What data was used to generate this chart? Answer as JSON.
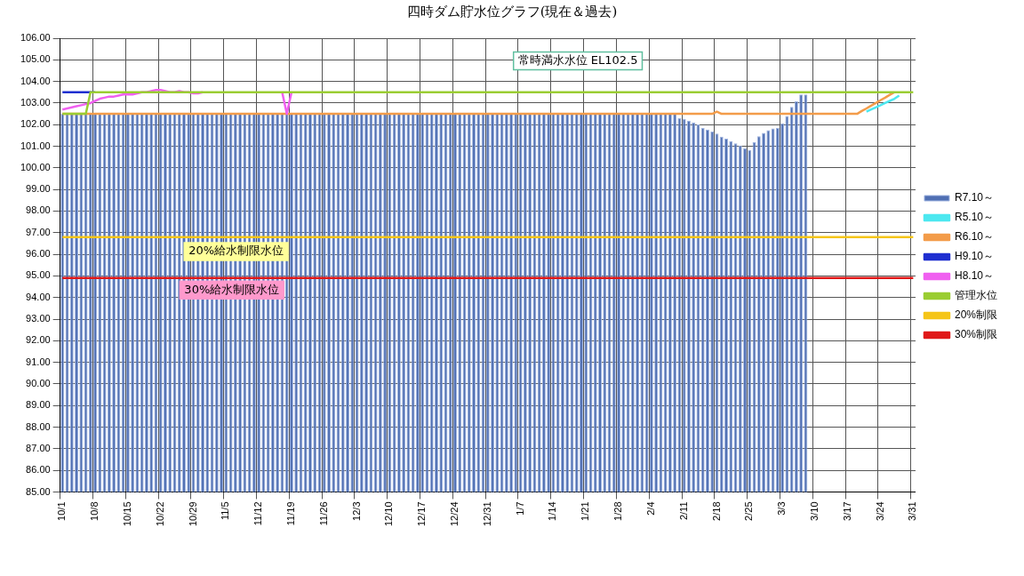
{
  "chart_data": {
    "type": "bar",
    "title": "四時ダム貯水位グラフ(現在＆過去)",
    "categories": [
      "10/1",
      null,
      null,
      null,
      null,
      null,
      null,
      "10/8",
      null,
      null,
      null,
      null,
      null,
      null,
      "10/15",
      null,
      null,
      null,
      null,
      null,
      null,
      "10/22",
      null,
      null,
      null,
      null,
      null,
      null,
      "10/29",
      null,
      null,
      null,
      null,
      null,
      null,
      "11/5",
      null,
      null,
      null,
      null,
      null,
      null,
      "11/12",
      null,
      null,
      null,
      null,
      null,
      null,
      "11/19",
      null,
      null,
      null,
      null,
      null,
      null,
      "11/26",
      null,
      null,
      null,
      null,
      null,
      null,
      "12/3",
      null,
      null,
      null,
      null,
      null,
      null,
      "12/10",
      null,
      null,
      null,
      null,
      null,
      null,
      "12/17",
      null,
      null,
      null,
      null,
      null,
      null,
      "12/24",
      null,
      null,
      null,
      null,
      null,
      null,
      "12/31",
      null,
      null,
      null,
      null,
      null,
      null,
      "1/7",
      null,
      null,
      null,
      null,
      null,
      null,
      "1/14",
      null,
      null,
      null,
      null,
      null,
      null,
      "1/21",
      null,
      null,
      null,
      null,
      null,
      null,
      "1/28",
      null,
      null,
      null,
      null,
      null,
      null,
      "2/4",
      null,
      null,
      null,
      null,
      null,
      null,
      "2/11",
      null,
      null,
      null,
      null,
      null,
      null,
      "2/18",
      null,
      null,
      null,
      null,
      null,
      null,
      "2/25",
      null,
      null,
      null,
      null,
      null,
      null,
      "3/3",
      null,
      null,
      null,
      null,
      null,
      null,
      "3/10",
      null,
      null,
      null,
      null,
      null,
      null,
      "3/17",
      null,
      null,
      null,
      null,
      null,
      null,
      "3/24",
      null,
      null,
      null,
      null,
      null,
      null,
      "3/31"
    ],
    "ylim": [
      85,
      106
    ],
    "yticks": [
      {
        "value": 85,
        "label": "85.00"
      },
      {
        "value": 86,
        "label": "86.00"
      },
      {
        "value": 87,
        "label": "87.00"
      },
      {
        "value": 88,
        "label": "88.00"
      },
      {
        "value": 89,
        "label": "89.00"
      },
      {
        "value": 90,
        "label": "90.00"
      },
      {
        "value": 91,
        "label": "91.00"
      },
      {
        "value": 92,
        "label": "92.00"
      },
      {
        "value": 93,
        "label": "93.00"
      },
      {
        "value": 94,
        "label": "94.00"
      },
      {
        "value": 95,
        "label": "95.00"
      },
      {
        "value": 96,
        "label": "96.00"
      },
      {
        "value": 97,
        "label": "97.00"
      },
      {
        "value": 98,
        "label": "98.00"
      },
      {
        "value": 99,
        "label": "99.00"
      },
      {
        "value": 100,
        "label": "100.00"
      },
      {
        "value": 101,
        "label": "101.00"
      },
      {
        "value": 102,
        "label": "102.00"
      },
      {
        "value": 103,
        "label": "103.00"
      },
      {
        "value": 104,
        "label": "104.00"
      },
      {
        "value": 105,
        "label": "105.00"
      },
      {
        "value": 106,
        "label": "106.00"
      }
    ],
    "grid": true,
    "legend": "right",
    "marker": "none",
    "annotations": [
      "常時満水水位 EL102.5",
      "20%給水制限水位",
      "30%給水制限水位"
    ],
    "series": [
      {
        "name": "R7.10～",
        "type": "bar",
        "color": "#4f6fb3",
        "values": [
          102.5,
          102.5,
          102.5,
          102.5,
          102.5,
          102.5,
          102.5,
          102.5,
          102.5,
          102.5,
          102.5,
          102.5,
          102.5,
          102.5,
          102.5,
          102.5,
          102.5,
          102.5,
          102.5,
          102.5,
          102.5,
          102.5,
          102.5,
          102.5,
          102.5,
          102.5,
          102.5,
          102.5,
          102.5,
          102.5,
          102.5,
          102.5,
          102.5,
          102.5,
          102.5,
          102.5,
          102.5,
          102.5,
          102.5,
          102.5,
          102.5,
          102.5,
          102.5,
          102.5,
          102.5,
          102.5,
          102.5,
          102.5,
          102.5,
          102.5,
          102.5,
          102.5,
          102.5,
          102.5,
          102.5,
          102.5,
          102.5,
          102.5,
          102.5,
          102.5,
          102.5,
          102.5,
          102.5,
          102.5,
          102.5,
          102.5,
          102.5,
          102.5,
          102.5,
          102.5,
          102.5,
          102.5,
          102.5,
          102.5,
          102.5,
          102.5,
          102.5,
          102.5,
          102.5,
          102.5,
          102.5,
          102.5,
          102.5,
          102.5,
          102.5,
          102.5,
          102.5,
          102.5,
          102.5,
          102.5,
          102.5,
          102.5,
          102.5,
          102.5,
          102.5,
          102.5,
          102.5,
          102.5,
          102.5,
          102.5,
          102.5,
          102.5,
          102.5,
          102.5,
          102.5,
          102.5,
          102.5,
          102.5,
          102.5,
          102.5,
          102.5,
          102.5,
          102.5,
          102.5,
          102.5,
          102.5,
          102.5,
          102.5,
          102.5,
          102.5,
          102.5,
          102.5,
          102.5,
          102.5,
          102.5,
          102.5,
          102.5,
          102.5,
          102.5,
          102.5,
          102.5,
          102.5,
          102.3,
          102.26,
          102.18,
          102.1,
          102.01,
          101.85,
          101.77,
          101.68,
          101.59,
          101.44,
          101.35,
          101.24,
          101.14,
          101.03,
          100.91,
          100.83,
          101.19,
          101.46,
          101.62,
          101.74,
          101.82,
          101.84,
          102.06,
          102.4,
          102.82,
          103.08,
          103.4,
          103.4,
          null,
          null,
          null,
          null,
          null,
          null,
          null,
          null,
          null,
          null,
          null,
          null,
          null,
          null,
          null,
          null,
          null,
          null,
          null,
          null,
          null,
          null,
          null
        ]
      },
      {
        "name": "R5.10～",
        "type": "line",
        "color": "#4de8f0",
        "values": [
          null,
          null,
          null,
          null,
          null,
          null,
          null,
          null,
          null,
          null,
          null,
          null,
          null,
          null,
          null,
          null,
          null,
          null,
          null,
          null,
          null,
          null,
          null,
          null,
          null,
          null,
          null,
          null,
          null,
          null,
          null,
          null,
          null,
          null,
          null,
          null,
          null,
          null,
          null,
          null,
          null,
          null,
          null,
          null,
          null,
          null,
          null,
          null,
          null,
          null,
          null,
          null,
          null,
          null,
          null,
          null,
          null,
          null,
          null,
          null,
          null,
          null,
          null,
          null,
          null,
          null,
          null,
          null,
          null,
          null,
          null,
          null,
          null,
          null,
          null,
          null,
          null,
          null,
          null,
          null,
          null,
          null,
          null,
          null,
          null,
          null,
          null,
          null,
          null,
          null,
          null,
          null,
          null,
          null,
          null,
          null,
          null,
          null,
          null,
          null,
          null,
          null,
          null,
          null,
          null,
          null,
          null,
          null,
          null,
          null,
          null,
          null,
          null,
          null,
          null,
          null,
          null,
          null,
          null,
          null,
          null,
          null,
          null,
          null,
          null,
          null,
          null,
          null,
          null,
          null,
          null,
          null,
          null,
          null,
          null,
          null,
          null,
          null,
          null,
          null,
          null,
          null,
          null,
          null,
          null,
          null,
          null,
          null,
          null,
          null,
          null,
          null,
          null,
          null,
          null,
          null,
          null,
          null,
          null,
          null,
          null,
          null,
          null,
          null,
          null,
          null,
          null,
          null,
          null,
          null,
          null,
          null,
          102.6,
          102.7,
          102.8,
          102.9,
          103.0,
          103.1,
          103.2,
          103.35,
          null,
          null,
          null
        ]
      },
      {
        "name": "R6.10～",
        "type": "line",
        "color": "#f39c4a",
        "values": [
          102.5,
          102.5,
          102.5,
          102.5,
          102.5,
          102.5,
          102.5,
          102.5,
          102.5,
          102.5,
          102.5,
          102.5,
          102.5,
          102.5,
          102.5,
          102.5,
          102.5,
          102.5,
          102.5,
          102.5,
          102.5,
          102.5,
          102.5,
          102.5,
          102.5,
          102.5,
          102.5,
          102.5,
          102.5,
          102.5,
          102.5,
          102.5,
          102.5,
          102.5,
          102.5,
          102.5,
          102.5,
          102.5,
          102.5,
          102.5,
          102.5,
          102.5,
          102.5,
          102.5,
          102.5,
          102.5,
          102.5,
          102.5,
          102.5,
          102.5,
          102.5,
          102.5,
          102.5,
          102.5,
          102.5,
          102.5,
          102.5,
          102.5,
          102.5,
          102.5,
          102.5,
          102.5,
          102.5,
          102.5,
          102.5,
          102.5,
          102.5,
          102.5,
          102.5,
          102.5,
          102.5,
          102.5,
          102.5,
          102.5,
          102.5,
          102.5,
          102.5,
          102.5,
          102.5,
          102.5,
          102.5,
          102.5,
          102.5,
          102.5,
          102.5,
          102.5,
          102.5,
          102.5,
          102.5,
          102.5,
          102.5,
          102.5,
          102.5,
          102.5,
          102.5,
          102.5,
          102.5,
          102.5,
          102.5,
          102.5,
          102.5,
          102.5,
          102.5,
          102.5,
          102.5,
          102.5,
          102.5,
          102.5,
          102.5,
          102.5,
          102.5,
          102.5,
          102.5,
          102.5,
          102.5,
          102.5,
          102.5,
          102.5,
          102.5,
          102.5,
          102.5,
          102.5,
          102.5,
          102.5,
          102.5,
          102.5,
          102.5,
          102.5,
          102.5,
          102.5,
          102.5,
          102.5,
          102.5,
          102.5,
          102.5,
          102.5,
          102.5,
          102.5,
          102.5,
          102.5,
          102.6,
          102.5,
          102.5,
          102.5,
          102.5,
          102.5,
          102.5,
          102.5,
          102.5,
          102.5,
          102.5,
          102.5,
          102.5,
          102.5,
          102.5,
          102.5,
          102.5,
          102.5,
          102.5,
          102.5,
          102.5,
          102.5,
          102.5,
          102.5,
          102.5,
          102.5,
          102.5,
          102.5,
          102.5,
          102.5,
          102.5,
          102.63,
          102.75,
          102.88,
          103.0,
          103.13,
          103.25,
          103.38,
          103.5,
          null,
          null,
          null,
          null
        ]
      },
      {
        "name": "H9.10～",
        "type": "line",
        "color": "#1f2fd0",
        "values": [
          103.5,
          103.5,
          103.5,
          103.5,
          103.5,
          103.5,
          103.5,
          103.5,
          null,
          null,
          null,
          null,
          null,
          null,
          null,
          null,
          null,
          null,
          null,
          null,
          null,
          null,
          null,
          null,
          null,
          null,
          null,
          null,
          null,
          null,
          null,
          null,
          null,
          null,
          null,
          null,
          null,
          null,
          null,
          null,
          null,
          null,
          null,
          null,
          null,
          null,
          null,
          null,
          null,
          null,
          null,
          null,
          null,
          null,
          null,
          null,
          null,
          null,
          null,
          null,
          null,
          null,
          null,
          null,
          null,
          null,
          null,
          null,
          null,
          null,
          null,
          null,
          null,
          null,
          null,
          null,
          null,
          null,
          null,
          null,
          null,
          null,
          null,
          null,
          null,
          null,
          null,
          null,
          null,
          null,
          null,
          null,
          null,
          null,
          null,
          null,
          null,
          null,
          null,
          null,
          null,
          null,
          null,
          null,
          null,
          null,
          null,
          null,
          null,
          null,
          null,
          null,
          null,
          null,
          null,
          null,
          null,
          null,
          null,
          null,
          null,
          null,
          null,
          null,
          null,
          null,
          null,
          null,
          null,
          null,
          null,
          null,
          null,
          null,
          null,
          null,
          null,
          null,
          null,
          null,
          null,
          null,
          null,
          null,
          null,
          null,
          null,
          null,
          null,
          null,
          null,
          null,
          null,
          null,
          null,
          null,
          null,
          null,
          null,
          null,
          null,
          null,
          null,
          null,
          null,
          null,
          null,
          null,
          null,
          null,
          null,
          null,
          null,
          null,
          null,
          null,
          null,
          null,
          null,
          null,
          null,
          null,
          null
        ]
      },
      {
        "name": "H8.10～",
        "type": "line",
        "color": "#f060f0",
        "values": [
          102.7,
          102.75,
          102.8,
          102.85,
          102.9,
          102.95,
          103.0,
          103.1,
          103.2,
          103.25,
          103.3,
          103.3,
          103.35,
          103.4,
          103.4,
          103.4,
          103.45,
          103.5,
          103.5,
          103.55,
          103.6,
          103.6,
          103.55,
          103.5,
          103.5,
          103.55,
          103.5,
          103.5,
          103.45,
          103.45,
          103.5,
          null,
          null,
          null,
          null,
          null,
          null,
          null,
          null,
          null,
          null,
          null,
          null,
          null,
          null,
          null,
          null,
          103.5,
          102.5,
          103.5,
          null,
          null,
          null,
          null,
          null,
          null,
          null,
          null,
          null,
          null,
          null,
          null,
          null,
          null,
          null,
          null,
          null,
          null,
          null,
          null,
          null,
          null,
          null,
          null,
          null,
          null,
          null,
          null,
          null,
          null,
          null,
          null,
          null,
          null,
          null,
          null,
          null,
          null,
          null,
          null,
          null,
          null,
          null,
          null,
          null,
          null,
          null,
          null,
          null,
          null,
          null,
          null,
          null,
          null,
          null,
          null,
          null,
          null,
          null,
          null,
          null,
          null,
          null,
          null,
          null,
          null,
          null,
          null,
          null,
          null,
          null,
          null,
          null,
          null,
          null,
          null,
          null,
          null,
          null,
          null,
          null,
          null,
          null,
          null,
          null,
          null,
          null,
          null,
          null,
          null,
          null,
          null,
          null,
          null,
          null,
          null,
          null,
          null,
          null,
          null,
          null,
          null,
          null,
          null,
          null,
          null,
          null,
          null,
          null,
          null,
          null,
          null,
          null,
          null,
          null,
          null,
          null,
          null,
          null,
          null,
          null,
          null,
          null,
          null,
          null,
          null,
          null,
          null,
          null,
          null,
          null,
          null,
          null
        ]
      },
      {
        "name": "管理水位",
        "type": "line",
        "color": "#9acd32",
        "values": [
          102.5,
          102.5,
          102.5,
          102.5,
          102.5,
          102.5,
          103.5,
          103.5,
          103.5,
          103.5,
          103.5,
          103.5,
          103.5,
          103.5,
          103.5,
          103.5,
          103.5,
          103.5,
          103.5,
          103.5,
          103.5,
          103.5,
          103.5,
          103.5,
          103.5,
          103.5,
          103.5,
          103.5,
          103.5,
          103.5,
          103.5,
          103.5,
          103.5,
          103.5,
          103.5,
          103.5,
          103.5,
          103.5,
          103.5,
          103.5,
          103.5,
          103.5,
          103.5,
          103.5,
          103.5,
          103.5,
          103.5,
          103.5,
          103.5,
          103.5,
          103.5,
          103.5,
          103.5,
          103.5,
          103.5,
          103.5,
          103.5,
          103.5,
          103.5,
          103.5,
          103.5,
          103.5,
          103.5,
          103.5,
          103.5,
          103.5,
          103.5,
          103.5,
          103.5,
          103.5,
          103.5,
          103.5,
          103.5,
          103.5,
          103.5,
          103.5,
          103.5,
          103.5,
          103.5,
          103.5,
          103.5,
          103.5,
          103.5,
          103.5,
          103.5,
          103.5,
          103.5,
          103.5,
          103.5,
          103.5,
          103.5,
          103.5,
          103.5,
          103.5,
          103.5,
          103.5,
          103.5,
          103.5,
          103.5,
          103.5,
          103.5,
          103.5,
          103.5,
          103.5,
          103.5,
          103.5,
          103.5,
          103.5,
          103.5,
          103.5,
          103.5,
          103.5,
          103.5,
          103.5,
          103.5,
          103.5,
          103.5,
          103.5,
          103.5,
          103.5,
          103.5,
          103.5,
          103.5,
          103.5,
          103.5,
          103.5,
          103.5,
          103.5,
          103.5,
          103.5,
          103.5,
          103.5,
          103.5,
          103.5,
          103.5,
          103.5,
          103.5,
          103.5,
          103.5,
          103.5,
          103.5,
          103.5,
          103.5,
          103.5,
          103.5,
          103.5,
          103.5,
          103.5,
          103.5,
          103.5,
          103.5,
          103.5,
          103.5,
          103.5,
          103.5,
          103.5,
          103.5,
          103.5,
          103.5,
          103.5,
          103.5,
          103.5,
          103.5,
          103.5,
          103.5,
          103.5,
          103.5,
          103.5,
          103.5,
          103.5,
          103.5,
          103.5,
          103.5,
          103.5,
          103.5,
          103.5,
          103.5,
          103.5,
          103.5,
          103.5,
          103.5,
          103.5,
          103.5
        ]
      },
      {
        "name": "20%制限",
        "type": "line",
        "color": "#f5c518",
        "values": [
          96.8,
          96.8,
          96.8,
          96.8,
          96.8,
          96.8,
          96.8,
          96.8,
          96.8,
          96.8,
          96.8,
          96.8,
          96.8,
          96.8,
          96.8,
          96.8,
          96.8,
          96.8,
          96.8,
          96.8,
          96.8,
          96.8,
          96.8,
          96.8,
          96.8,
          96.8,
          96.8,
          96.8,
          96.8,
          96.8,
          96.8,
          96.8,
          96.8,
          96.8,
          96.8,
          96.8,
          96.8,
          96.8,
          96.8,
          96.8,
          96.8,
          96.8,
          96.8,
          96.8,
          96.8,
          96.8,
          96.8,
          96.8,
          96.8,
          96.8,
          96.8,
          96.8,
          96.8,
          96.8,
          96.8,
          96.8,
          96.8,
          96.8,
          96.8,
          96.8,
          96.8,
          96.8,
          96.8,
          96.8,
          96.8,
          96.8,
          96.8,
          96.8,
          96.8,
          96.8,
          96.8,
          96.8,
          96.8,
          96.8,
          96.8,
          96.8,
          96.8,
          96.8,
          96.8,
          96.8,
          96.8,
          96.8,
          96.8,
          96.8,
          96.8,
          96.8,
          96.8,
          96.8,
          96.8,
          96.8,
          96.8,
          96.8,
          96.8,
          96.8,
          96.8,
          96.8,
          96.8,
          96.8,
          96.8,
          96.8,
          96.8,
          96.8,
          96.8,
          96.8,
          96.8,
          96.8,
          96.8,
          96.8,
          96.8,
          96.8,
          96.8,
          96.8,
          96.8,
          96.8,
          96.8,
          96.8,
          96.8,
          96.8,
          96.8,
          96.8,
          96.8,
          96.8,
          96.8,
          96.8,
          96.8,
          96.8,
          96.8,
          96.8,
          96.8,
          96.8,
          96.8,
          96.8,
          96.8,
          96.8,
          96.8,
          96.8,
          96.8,
          96.8,
          96.8,
          96.8,
          96.8,
          96.8,
          96.8,
          96.8,
          96.8,
          96.8,
          96.8,
          96.8,
          96.8,
          96.8,
          96.8,
          96.8,
          96.8,
          96.8,
          96.8,
          96.8,
          96.8,
          96.8,
          96.8,
          96.8,
          96.8,
          96.8,
          96.8,
          96.8,
          96.8,
          96.8,
          96.8,
          96.8,
          96.8,
          96.8,
          96.8,
          96.8,
          96.8,
          96.8,
          96.8,
          96.8,
          96.8,
          96.8,
          96.8,
          96.8,
          96.8,
          96.8,
          96.8
        ]
      },
      {
        "name": "30%制限",
        "type": "line",
        "color": "#e01818",
        "values": [
          94.9,
          94.9,
          94.9,
          94.9,
          94.9,
          94.9,
          94.9,
          94.9,
          94.9,
          94.9,
          94.9,
          94.9,
          94.9,
          94.9,
          94.9,
          94.9,
          94.9,
          94.9,
          94.9,
          94.9,
          94.9,
          94.9,
          94.9,
          94.9,
          94.9,
          94.9,
          94.9,
          94.9,
          94.9,
          94.9,
          94.9,
          94.9,
          94.9,
          94.9,
          94.9,
          94.9,
          94.9,
          94.9,
          94.9,
          94.9,
          94.9,
          94.9,
          94.9,
          94.9,
          94.9,
          94.9,
          94.9,
          94.9,
          94.9,
          94.9,
          94.9,
          94.9,
          94.9,
          94.9,
          94.9,
          94.9,
          94.9,
          94.9,
          94.9,
          94.9,
          94.9,
          94.9,
          94.9,
          94.9,
          94.9,
          94.9,
          94.9,
          94.9,
          94.9,
          94.9,
          94.9,
          94.9,
          94.9,
          94.9,
          94.9,
          94.9,
          94.9,
          94.9,
          94.9,
          94.9,
          94.9,
          94.9,
          94.9,
          94.9,
          94.9,
          94.9,
          94.9,
          94.9,
          94.9,
          94.9,
          94.9,
          94.9,
          94.9,
          94.9,
          94.9,
          94.9,
          94.9,
          94.9,
          94.9,
          94.9,
          94.9,
          94.9,
          94.9,
          94.9,
          94.9,
          94.9,
          94.9,
          94.9,
          94.9,
          94.9,
          94.9,
          94.9,
          94.9,
          94.9,
          94.9,
          94.9,
          94.9,
          94.9,
          94.9,
          94.9,
          94.9,
          94.9,
          94.9,
          94.9,
          94.9,
          94.9,
          94.9,
          94.9,
          94.9,
          94.9,
          94.9,
          94.9,
          94.9,
          94.9,
          94.9,
          94.9,
          94.9,
          94.9,
          94.9,
          94.9,
          94.9,
          94.9,
          94.9,
          94.9,
          94.9,
          94.9,
          94.9,
          94.9,
          94.9,
          94.9,
          94.9,
          94.9,
          94.9,
          94.9,
          94.9,
          94.9,
          94.9,
          94.9,
          94.9,
          94.9,
          94.9,
          94.9,
          94.9,
          94.9,
          94.9,
          94.9,
          94.9,
          94.9,
          94.9,
          94.9,
          94.9,
          94.9,
          94.9,
          94.9,
          94.9,
          94.9,
          94.9,
          94.9,
          94.9,
          94.9,
          94.9,
          94.9,
          94.9
        ]
      }
    ]
  }
}
